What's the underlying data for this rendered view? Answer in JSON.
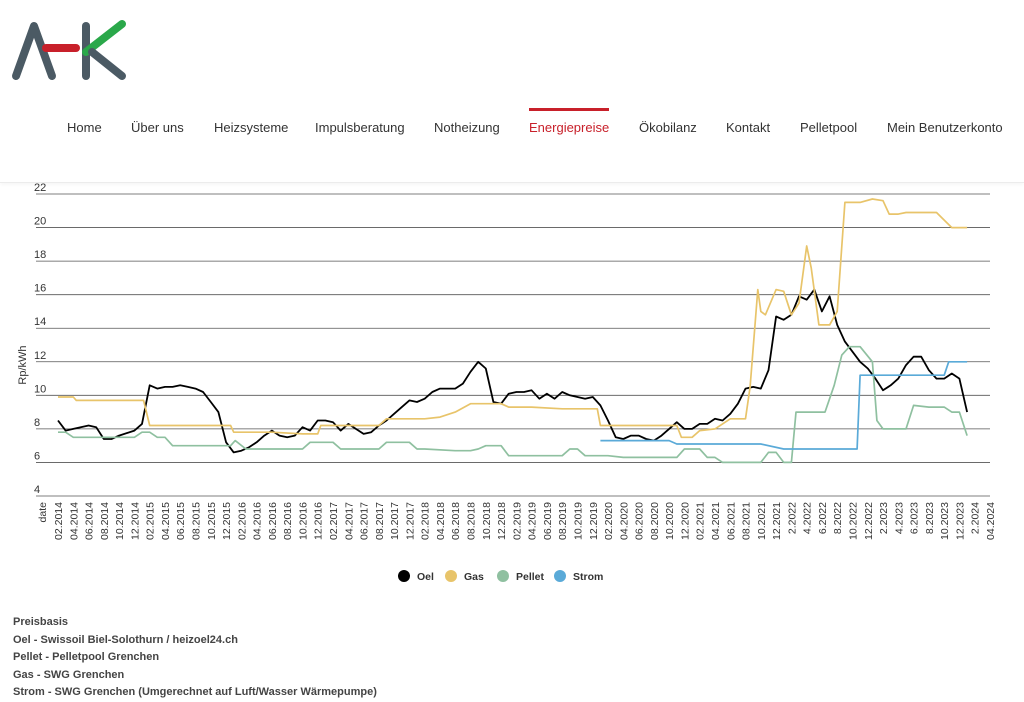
{
  "brand": {
    "logo_text": "AHK",
    "colors": {
      "gray": "#4b5a64",
      "red": "#c8202a",
      "green": "#2aa84a"
    }
  },
  "nav": {
    "items": [
      {
        "label": "Home"
      },
      {
        "label": "Über uns"
      },
      {
        "label": "Heizsysteme"
      },
      {
        "label": "Impulsberatung"
      },
      {
        "label": "Notheizung"
      },
      {
        "label": "Energiepreise",
        "active": true
      },
      {
        "label": "Ökobilanz"
      },
      {
        "label": "Kontakt"
      },
      {
        "label": "Pelletpool"
      },
      {
        "label": "Mein Benutzerkonto"
      }
    ],
    "active_color": "#c8202a"
  },
  "chart_data": {
    "type": "line",
    "title": "",
    "xlabel": "",
    "ylabel": "Rp/kWh",
    "ylim": [
      4,
      22
    ],
    "yticks": [
      4,
      6,
      8,
      10,
      12,
      14,
      16,
      18,
      20,
      22
    ],
    "grid": "horizontal",
    "legend_position": "bottom",
    "x_first_label": "date",
    "x_ticks": [
      "02.2014",
      "04.2014",
      "06.2014",
      "08.2014",
      "10.2014",
      "12.2014",
      "02.2015",
      "04.2015",
      "06.2015",
      "08.2015",
      "10.2015",
      "12.2015",
      "02.2016",
      "04.2016",
      "06.2016",
      "08.2016",
      "10.2016",
      "12.2016",
      "02.2017",
      "04.2017",
      "06.2017",
      "08.2017",
      "10.2017",
      "12.2017",
      "02.2018",
      "04.2018",
      "06.2018",
      "08.2018",
      "10.2018",
      "12.2018",
      "02.2019",
      "04.2019",
      "06.2019",
      "08.2019",
      "10.2019",
      "12.2019",
      "02.2020",
      "04.2020",
      "06.2020",
      "08.2020",
      "10.2020",
      "12.2020",
      "02.2021",
      "04.2021",
      "06.2021",
      "08.2021",
      "10.2021",
      "12.2021",
      "2.2022",
      "4.2022",
      "6.2022",
      "8.2022",
      "10.2022",
      "12.2022",
      "2.2023",
      "4.2023",
      "6.2023",
      "8.2023",
      "10.2023",
      "12.2023",
      "2.2024",
      "04.2024"
    ],
    "series": [
      {
        "name": "Oel",
        "color": "#000000",
        "points": [
          [
            0,
            8.5
          ],
          [
            0.5,
            7.9
          ],
          [
            1,
            8.0
          ],
          [
            2,
            8.2
          ],
          [
            2.5,
            8.1
          ],
          [
            3,
            7.4
          ],
          [
            3.5,
            7.4
          ],
          [
            4,
            7.6
          ],
          [
            5,
            7.9
          ],
          [
            5.5,
            8.3
          ],
          [
            6,
            10.6
          ],
          [
            6.5,
            10.4
          ],
          [
            7,
            10.5
          ],
          [
            7.5,
            10.5
          ],
          [
            8,
            10.6
          ],
          [
            8.5,
            10.5
          ],
          [
            9,
            10.4
          ],
          [
            9.5,
            10.2
          ],
          [
            10,
            9.6
          ],
          [
            10.5,
            9.0
          ],
          [
            11,
            7.2
          ],
          [
            11.5,
            6.6
          ],
          [
            12,
            6.7
          ],
          [
            12.5,
            6.9
          ],
          [
            13,
            7.2
          ],
          [
            13.5,
            7.6
          ],
          [
            14,
            7.9
          ],
          [
            14.5,
            7.6
          ],
          [
            15,
            7.5
          ],
          [
            15.5,
            7.6
          ],
          [
            16,
            8.1
          ],
          [
            16.5,
            7.9
          ],
          [
            17,
            8.5
          ],
          [
            17.5,
            8.5
          ],
          [
            18,
            8.4
          ],
          [
            18.5,
            7.9
          ],
          [
            19,
            8.3
          ],
          [
            19.5,
            8.0
          ],
          [
            20,
            7.7
          ],
          [
            20.5,
            7.8
          ],
          [
            21,
            8.2
          ],
          [
            21.5,
            8.5
          ],
          [
            22,
            8.9
          ],
          [
            22.5,
            9.3
          ],
          [
            23,
            9.7
          ],
          [
            23.5,
            9.6
          ],
          [
            24,
            9.8
          ],
          [
            24.5,
            10.2
          ],
          [
            25,
            10.4
          ],
          [
            25.5,
            10.4
          ],
          [
            26,
            10.4
          ],
          [
            26.5,
            10.7
          ],
          [
            27,
            11.4
          ],
          [
            27.5,
            12.0
          ],
          [
            28,
            11.6
          ],
          [
            28.5,
            9.6
          ],
          [
            29,
            9.5
          ],
          [
            29.5,
            10.1
          ],
          [
            30,
            10.2
          ],
          [
            30.5,
            10.2
          ],
          [
            31,
            10.3
          ],
          [
            31.5,
            9.8
          ],
          [
            32,
            10.1
          ],
          [
            32.5,
            9.8
          ],
          [
            33,
            10.2
          ],
          [
            33.5,
            10.0
          ],
          [
            34,
            9.9
          ],
          [
            34.5,
            9.8
          ],
          [
            35,
            9.9
          ],
          [
            35.5,
            9.4
          ],
          [
            36,
            8.5
          ],
          [
            36.5,
            7.5
          ],
          [
            37,
            7.4
          ],
          [
            37.5,
            7.6
          ],
          [
            38,
            7.6
          ],
          [
            38.5,
            7.4
          ],
          [
            39,
            7.3
          ],
          [
            39.5,
            7.6
          ],
          [
            40,
            8.0
          ],
          [
            40.5,
            8.4
          ],
          [
            41,
            8.0
          ],
          [
            41.5,
            8.0
          ],
          [
            42,
            8.3
          ],
          [
            42.5,
            8.3
          ],
          [
            43,
            8.6
          ],
          [
            43.5,
            8.5
          ],
          [
            44,
            8.9
          ],
          [
            44.5,
            9.5
          ],
          [
            45,
            10.4
          ],
          [
            45.5,
            10.5
          ],
          [
            46,
            10.4
          ],
          [
            46.5,
            11.5
          ],
          [
            47,
            14.7
          ],
          [
            47.5,
            14.5
          ],
          [
            48,
            14.8
          ],
          [
            48.5,
            15.9
          ],
          [
            49,
            15.7
          ],
          [
            49.5,
            16.3
          ],
          [
            50,
            15.0
          ],
          [
            50.5,
            15.9
          ],
          [
            51,
            14.2
          ],
          [
            51.5,
            13.2
          ],
          [
            52,
            12.6
          ],
          [
            52.5,
            12.0
          ],
          [
            53,
            11.6
          ],
          [
            53.5,
            11.0
          ],
          [
            54,
            10.3
          ],
          [
            54.5,
            10.6
          ],
          [
            55,
            11.0
          ],
          [
            55.5,
            11.8
          ],
          [
            56,
            12.3
          ],
          [
            56.5,
            12.3
          ],
          [
            57,
            11.5
          ],
          [
            57.5,
            11.0
          ],
          [
            58,
            11.0
          ],
          [
            58.5,
            11.3
          ],
          [
            59,
            11.0
          ],
          [
            59.5,
            9.0
          ]
        ]
      },
      {
        "name": "Gas",
        "color": "#e8c46a",
        "points": [
          [
            0,
            9.9
          ],
          [
            1,
            9.9
          ],
          [
            1.2,
            9.7
          ],
          [
            3,
            9.7
          ],
          [
            5.6,
            9.7
          ],
          [
            6,
            8.2
          ],
          [
            8.5,
            8.2
          ],
          [
            9,
            8.2
          ],
          [
            11.3,
            8.2
          ],
          [
            11.5,
            7.8
          ],
          [
            13,
            7.8
          ],
          [
            14,
            7.8
          ],
          [
            16,
            7.7
          ],
          [
            17,
            7.7
          ],
          [
            17.2,
            8.2
          ],
          [
            20,
            8.2
          ],
          [
            21,
            8.2
          ],
          [
            21.5,
            8.6
          ],
          [
            24,
            8.6
          ],
          [
            25,
            8.7
          ],
          [
            26,
            9.0
          ],
          [
            27,
            9.5
          ],
          [
            28,
            9.5
          ],
          [
            28.5,
            9.5
          ],
          [
            29,
            9.5
          ],
          [
            29.5,
            9.3
          ],
          [
            31,
            9.3
          ],
          [
            33,
            9.2
          ],
          [
            34,
            9.2
          ],
          [
            35.3,
            9.2
          ],
          [
            35.5,
            8.2
          ],
          [
            37,
            8.2
          ],
          [
            38,
            8.2
          ],
          [
            39,
            8.2
          ],
          [
            40.5,
            8.2
          ],
          [
            40.8,
            7.5
          ],
          [
            41.5,
            7.5
          ],
          [
            42,
            7.9
          ],
          [
            43,
            8.0
          ],
          [
            44,
            8.6
          ],
          [
            45,
            8.6
          ],
          [
            45.3,
            10.5
          ],
          [
            45.8,
            16.3
          ],
          [
            46,
            15.0
          ],
          [
            46.3,
            14.8
          ],
          [
            47,
            16.3
          ],
          [
            47.5,
            16.2
          ],
          [
            48,
            14.8
          ],
          [
            48.5,
            15.5
          ],
          [
            49,
            18.9
          ],
          [
            49.3,
            17.6
          ],
          [
            49.8,
            14.2
          ],
          [
            50.5,
            14.2
          ],
          [
            51,
            15.0
          ],
          [
            51.5,
            21.5
          ],
          [
            52.5,
            21.5
          ],
          [
            53.3,
            21.7
          ],
          [
            54,
            21.6
          ],
          [
            54.4,
            20.8
          ],
          [
            55,
            20.8
          ],
          [
            55.5,
            20.9
          ],
          [
            57.5,
            20.9
          ],
          [
            58.5,
            20.0
          ],
          [
            59.5,
            20.0
          ]
        ]
      },
      {
        "name": "Pellet",
        "color": "#8fc0a0",
        "points": [
          [
            0,
            7.8
          ],
          [
            0.5,
            7.8
          ],
          [
            1,
            7.5
          ],
          [
            4,
            7.5
          ],
          [
            5,
            7.5
          ],
          [
            5.5,
            7.8
          ],
          [
            6,
            7.8
          ],
          [
            6.5,
            7.5
          ],
          [
            7,
            7.5
          ],
          [
            7.5,
            7.0
          ],
          [
            10,
            7.0
          ],
          [
            11.3,
            7.0
          ],
          [
            11.6,
            7.3
          ],
          [
            12.3,
            6.8
          ],
          [
            14,
            6.8
          ],
          [
            15,
            6.8
          ],
          [
            16,
            6.8
          ],
          [
            16.5,
            7.2
          ],
          [
            17,
            7.2
          ],
          [
            18,
            7.2
          ],
          [
            18.5,
            6.8
          ],
          [
            21,
            6.8
          ],
          [
            21.5,
            7.2
          ],
          [
            23,
            7.2
          ],
          [
            23.5,
            6.8
          ],
          [
            24,
            6.8
          ],
          [
            26,
            6.7
          ],
          [
            27,
            6.7
          ],
          [
            27.5,
            6.8
          ],
          [
            28,
            7.0
          ],
          [
            29,
            7.0
          ],
          [
            29.5,
            6.4
          ],
          [
            33,
            6.4
          ],
          [
            33.5,
            6.8
          ],
          [
            34,
            6.8
          ],
          [
            34.5,
            6.4
          ],
          [
            36,
            6.4
          ],
          [
            37,
            6.3
          ],
          [
            39,
            6.3
          ],
          [
            40.5,
            6.3
          ],
          [
            41,
            6.8
          ],
          [
            42,
            6.8
          ],
          [
            42.5,
            6.3
          ],
          [
            43,
            6.3
          ],
          [
            43.5,
            6.0
          ],
          [
            45,
            6.0
          ],
          [
            46,
            6.0
          ],
          [
            46.5,
            6.6
          ],
          [
            47,
            6.6
          ],
          [
            47.5,
            6.0
          ],
          [
            48,
            6.0
          ],
          [
            48.3,
            9.0
          ],
          [
            49,
            9.0
          ],
          [
            50.2,
            9.0
          ],
          [
            50.8,
            10.6
          ],
          [
            51.3,
            12.4
          ],
          [
            51.8,
            12.9
          ],
          [
            52.5,
            12.9
          ],
          [
            53.3,
            12.0
          ],
          [
            53.6,
            8.5
          ],
          [
            54,
            8.0
          ],
          [
            55.5,
            8.0
          ],
          [
            56,
            9.4
          ],
          [
            57,
            9.3
          ],
          [
            58,
            9.3
          ],
          [
            58.5,
            9.0
          ],
          [
            59,
            9.0
          ],
          [
            59.5,
            7.6
          ]
        ]
      },
      {
        "name": "Strom",
        "color": "#5aaad8",
        "points": [
          [
            35.5,
            7.3
          ],
          [
            40,
            7.3
          ],
          [
            40.5,
            7.1
          ],
          [
            46,
            7.1
          ],
          [
            47.5,
            6.8
          ],
          [
            51,
            6.8
          ],
          [
            52.3,
            6.8
          ],
          [
            52.5,
            11.2
          ],
          [
            53,
            11.2
          ],
          [
            58,
            11.2
          ],
          [
            58.3,
            12.0
          ],
          [
            59.5,
            12.0
          ]
        ]
      }
    ]
  },
  "footer": {
    "lines": [
      "Preisbasis",
      "Oel - Swissoil Biel-Solothurn / heizoel24.ch",
      "Pellet - Pelletpool Grenchen",
      "Gas - SWG Grenchen",
      "Strom - SWG Grenchen (Umgerechnet auf Luft/Wasser Wärmepumpe)"
    ]
  }
}
